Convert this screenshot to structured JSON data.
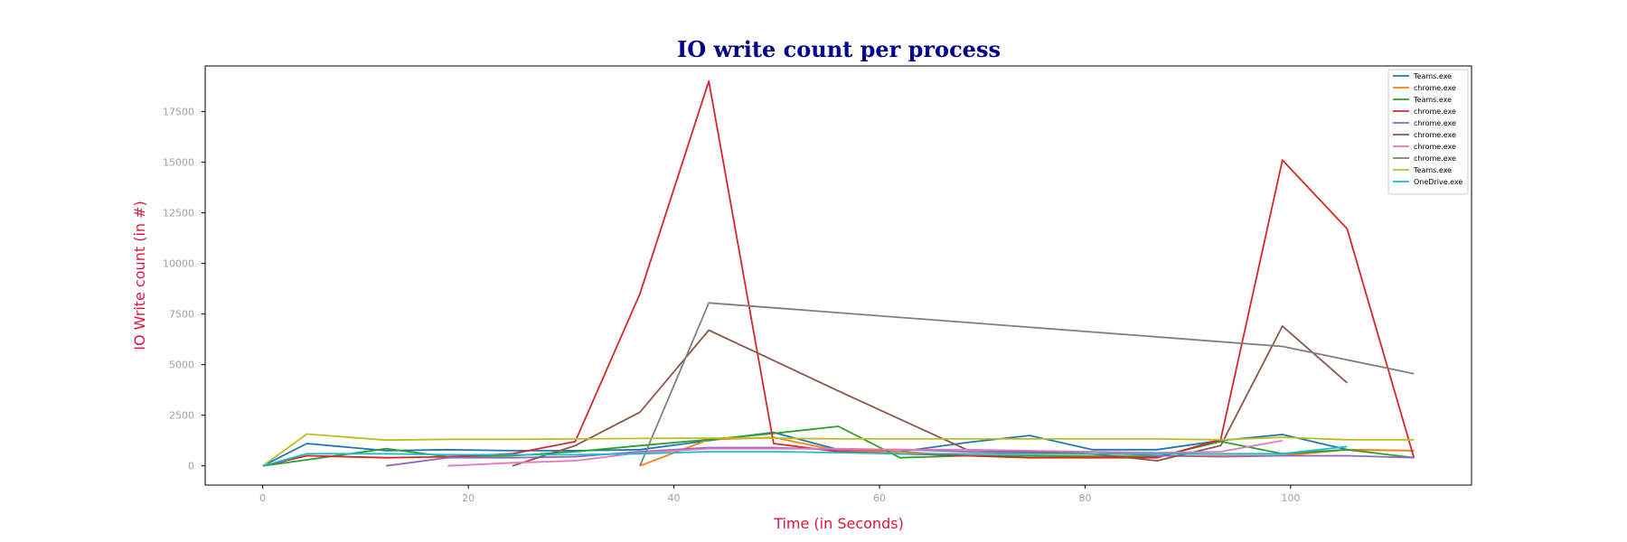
{
  "chart_data": {
    "type": "line",
    "title": "IO write count per process",
    "xlabel": "Time (in Seconds)",
    "ylabel": "IO Write count (in #)",
    "xlim": [
      -5.6,
      117.6
    ],
    "ylim": [
      -950,
      19750
    ],
    "xticks": [
      0,
      20,
      40,
      60,
      80,
      100
    ],
    "yticks": [
      0,
      2500,
      5000,
      7500,
      10000,
      12500,
      15000,
      17500
    ],
    "grid": false,
    "legend_position": "top-right",
    "colors": {
      "title": "#00008b",
      "axis_label": "#dc143c",
      "tick_label": "#a0a0a0",
      "frame": "#000000"
    },
    "series": [
      {
        "name": "Teams.exe",
        "color": "#1f77b4",
        "x": [
          0,
          4.3,
          12,
          18,
          24.3,
          30.4,
          36.7,
          43.4,
          49.7,
          56,
          62,
          68.5,
          74.6,
          80.7,
          87,
          93.2,
          99.2,
          105.5,
          112
        ],
        "y": [
          0,
          1100,
          750,
          800,
          750,
          750,
          800,
          1250,
          1650,
          800,
          700,
          1150,
          1500,
          800,
          800,
          1250,
          1550,
          800,
          750
        ]
      },
      {
        "name": "chrome.exe",
        "color": "#ff7f0e",
        "x": [
          36.7,
          43.4,
          49.7,
          56,
          62,
          68.5,
          74.6,
          80.7,
          87,
          93.2,
          99.2,
          105.5,
          112
        ],
        "y": [
          0,
          1300,
          1400,
          750,
          700,
          500,
          500,
          500,
          500,
          500,
          500,
          800,
          750
        ]
      },
      {
        "name": "Teams.exe",
        "color": "#2ca02c",
        "x": [
          0,
          4.3,
          12,
          18,
          24.3,
          30.4,
          36.7,
          43.4,
          49.7,
          56,
          62,
          68.5,
          74.6,
          80.7,
          87,
          93.2,
          99.2,
          105.5,
          112
        ],
        "y": [
          0,
          300,
          850,
          450,
          500,
          700,
          1000,
          1300,
          1600,
          1950,
          400,
          500,
          500,
          450,
          450,
          1200,
          600,
          800,
          400
        ]
      },
      {
        "name": "chrome.exe",
        "color": "#d62728",
        "x": [
          0,
          4.3,
          12,
          18,
          24.3,
          30.4,
          36.7,
          43.4,
          49.7,
          56,
          62,
          68.5,
          74.6,
          80.7,
          87,
          93.2,
          99.2,
          105.5,
          112
        ],
        "y": [
          0,
          500,
          400,
          450,
          600,
          1200,
          8500,
          19000,
          1100,
          700,
          600,
          500,
          400,
          400,
          400,
          1300,
          15100,
          11700,
          400
        ]
      },
      {
        "name": "chrome.exe",
        "color": "#9467bd",
        "x": [
          12,
          18,
          24.3,
          30.4,
          36.7,
          43.4,
          49.7,
          56,
          62,
          68.5,
          74.6,
          80.7,
          87,
          93.2,
          99.2,
          105.5,
          112
        ],
        "y": [
          0,
          400,
          400,
          450,
          700,
          900,
          900,
          800,
          800,
          700,
          650,
          700,
          500,
          450,
          500,
          500,
          400
        ]
      },
      {
        "name": "chrome.exe",
        "color": "#8c564b",
        "x": [
          24.3,
          30.4,
          36.7,
          43.4,
          49.7,
          56,
          62,
          68.5,
          74.6,
          80.7,
          87,
          93.2,
          99.2,
          105.5
        ],
        "y": [
          0,
          1000,
          2650,
          6700,
          5200,
          3700,
          2300,
          800,
          700,
          600,
          250,
          1000,
          6900,
          4100
        ]
      },
      {
        "name": "chrome.exe",
        "color": "#e377c2",
        "x": [
          18,
          24.3,
          30.4,
          36.7,
          43.4,
          49.7,
          56,
          62,
          68.5,
          74.6,
          80.7,
          87,
          93.2,
          99.2
        ],
        "y": [
          0,
          150,
          250,
          650,
          850,
          850,
          850,
          800,
          800,
          750,
          700,
          650,
          700,
          1250
        ]
      },
      {
        "name": "chrome.exe",
        "color": "#7f7f7f",
        "x": [
          36.7,
          43.4,
          99.2,
          112
        ],
        "y": [
          0,
          8050,
          5900,
          4550
        ]
      },
      {
        "name": "Teams.exe",
        "color": "#bcbd22",
        "x": [
          0,
          4.3,
          12,
          18,
          24.3,
          30.4,
          36.7,
          43.4,
          49.7,
          56,
          62,
          68.5,
          74.6,
          80.7,
          87,
          93.2,
          99.2,
          105.5,
          112
        ],
        "y": [
          0,
          1570,
          1270,
          1310,
          1310,
          1330,
          1350,
          1370,
          1370,
          1330,
          1330,
          1330,
          1330,
          1330,
          1330,
          1290,
          1410,
          1290,
          1290
        ]
      },
      {
        "name": "OneDrive.exe",
        "color": "#17becf",
        "x": [
          0,
          4.3,
          12,
          18,
          24.3,
          30.4,
          36.7,
          43.4,
          49.7,
          56,
          62,
          68.5,
          74.6,
          80.7,
          87,
          93.2,
          99.2,
          105.5
        ],
        "y": [
          0,
          600,
          600,
          550,
          550,
          550,
          600,
          700,
          700,
          650,
          600,
          600,
          600,
          600,
          600,
          600,
          600,
          950
        ]
      }
    ]
  }
}
